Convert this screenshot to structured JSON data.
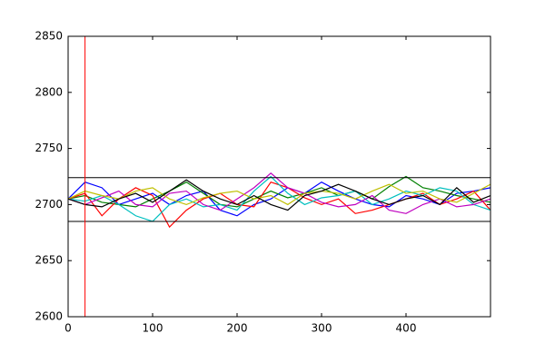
{
  "chart_data": {
    "type": "line",
    "x": [
      0,
      20,
      40,
      60,
      80,
      100,
      120,
      140,
      160,
      180,
      200,
      220,
      240,
      260,
      280,
      300,
      320,
      340,
      360,
      380,
      400,
      420,
      440,
      460,
      480,
      500
    ],
    "series": [
      {
        "color": "#0000ff",
        "values": [
          2705,
          2720,
          2715,
          2700,
          2705,
          2710,
          2700,
          2708,
          2712,
          2695,
          2690,
          2700,
          2705,
          2715,
          2710,
          2720,
          2712,
          2705,
          2700,
          2698,
          2708,
          2705,
          2700,
          2710,
          2712,
          2715
        ]
      },
      {
        "color": "#008000",
        "values": [
          2705,
          2708,
          2702,
          2700,
          2698,
          2705,
          2712,
          2720,
          2710,
          2700,
          2698,
          2705,
          2712,
          2706,
          2710,
          2715,
          2708,
          2712,
          2705,
          2716,
          2725,
          2715,
          2712,
          2708,
          2705,
          2702
        ]
      },
      {
        "color": "#ff0000",
        "values": [
          2705,
          2710,
          2690,
          2705,
          2715,
          2708,
          2680,
          2695,
          2705,
          2710,
          2700,
          2698,
          2720,
          2715,
          2706,
          2700,
          2705,
          2692,
          2695,
          2700,
          2705,
          2710,
          2700,
          2705,
          2712,
          2695
        ]
      },
      {
        "color": "#00bfbf",
        "values": [
          2705,
          2703,
          2708,
          2700,
          2690,
          2685,
          2700,
          2705,
          2698,
          2700,
          2695,
          2712,
          2725,
          2710,
          2700,
          2706,
          2708,
          2712,
          2700,
          2705,
          2712,
          2708,
          2715,
          2712,
          2700,
          2695
        ]
      },
      {
        "color": "#bf00bf",
        "values": [
          2705,
          2700,
          2706,
          2712,
          2700,
          2698,
          2710,
          2712,
          2700,
          2695,
          2705,
          2715,
          2728,
          2715,
          2710,
          2702,
          2698,
          2700,
          2708,
          2695,
          2692,
          2700,
          2705,
          2698,
          2700,
          2705
        ]
      },
      {
        "color": "#bfbf00",
        "values": [
          2705,
          2712,
          2708,
          2705,
          2712,
          2715,
          2705,
          2700,
          2706,
          2710,
          2712,
          2705,
          2708,
          2700,
          2710,
          2712,
          2710,
          2705,
          2712,
          2718,
          2710,
          2712,
          2705,
          2702,
          2710,
          2718
        ]
      },
      {
        "color": "#000000",
        "values": [
          2705,
          2700,
          2698,
          2705,
          2710,
          2702,
          2712,
          2722,
          2712,
          2705,
          2700,
          2708,
          2700,
          2695,
          2708,
          2712,
          2718,
          2712,
          2705,
          2700,
          2705,
          2708,
          2700,
          2715,
          2702,
          2708
        ]
      }
    ],
    "hlines": [
      2724,
      2685
    ],
    "hline_color": "#000000",
    "vline": 20,
    "vline_color": "#ff0000",
    "xlim": [
      0,
      500
    ],
    "xticks": [
      0,
      100,
      200,
      300,
      400
    ],
    "ylim": [
      2600,
      2850
    ],
    "yticks": [
      2600,
      2650,
      2700,
      2750,
      2800,
      2850
    ]
  }
}
